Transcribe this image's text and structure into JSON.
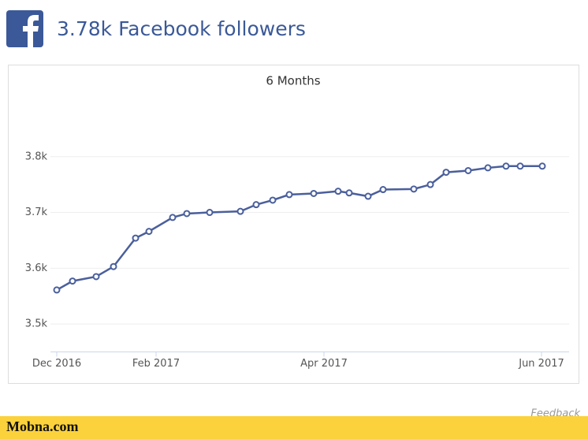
{
  "header": {
    "title": "3.78k Facebook followers"
  },
  "chart_data": {
    "type": "line",
    "title": "6 Months",
    "x": [
      0,
      20,
      50,
      72,
      100,
      117,
      147,
      165,
      194,
      233,
      253,
      274,
      295,
      326,
      357,
      371,
      395,
      414,
      453,
      474,
      494,
      522,
      547,
      570,
      588,
      616
    ],
    "series": [
      {
        "name": "Followers",
        "color": "#4a5f9c",
        "values": [
          3561,
          3577,
          3585,
          3603,
          3654,
          3666,
          3691,
          3698,
          3700,
          3702,
          3714,
          3722,
          3732,
          3734,
          3738,
          3735,
          3729,
          3741,
          3742,
          3750,
          3772,
          3775,
          3780,
          3783,
          3783,
          3783
        ]
      }
    ],
    "xlim": [
      0,
      650
    ],
    "xticks": [
      {
        "value": 0,
        "label": "Dec 2016"
      },
      {
        "value": 126,
        "label": "Feb 2017"
      },
      {
        "value": 339,
        "label": "Apr 2017"
      },
      {
        "value": 615,
        "label": "Jun 2017"
      }
    ],
    "ylim": [
      3450,
      3900
    ],
    "yticks": [
      {
        "value": 3500,
        "label": "3.5k"
      },
      {
        "value": 3600,
        "label": "3.6k"
      },
      {
        "value": 3700,
        "label": "3.7k"
      },
      {
        "value": 3800,
        "label": "3.8k"
      }
    ],
    "grid": true
  },
  "footer": {
    "feedback": "Feedback",
    "brand": "Mobna.com"
  }
}
